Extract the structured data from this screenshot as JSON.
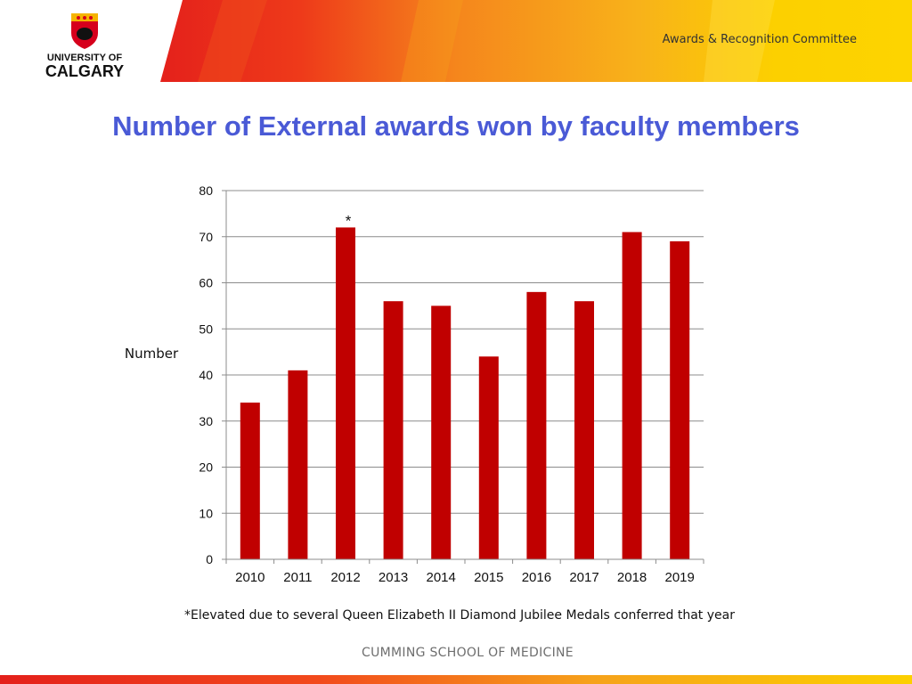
{
  "header": {
    "logo_text": [
      "UNIVERSITY OF",
      "CALGARY"
    ],
    "committee": "Awards & Recognition Committee"
  },
  "colors": {
    "title": "#4a5ad6",
    "bar": "#c00000",
    "header_red": "#e8231c",
    "header_orange": "#f28c1a",
    "header_yellow": "#fcd000"
  },
  "chart_data": {
    "type": "bar",
    "title": "Number of External awards won by faculty members",
    "xlabel": "",
    "ylabel": "Number",
    "categories": [
      "2010",
      "2011",
      "2012",
      "2013",
      "2014",
      "2015",
      "2016",
      "2017",
      "2018",
      "2019"
    ],
    "values": [
      34,
      41,
      72,
      56,
      55,
      44,
      58,
      56,
      71,
      69
    ],
    "ylim": [
      0,
      80
    ],
    "yticks": [
      0,
      10,
      20,
      30,
      40,
      50,
      60,
      70,
      80
    ],
    "grid": true,
    "annotations": [
      {
        "category": "2012",
        "text": "*"
      }
    ]
  },
  "footnote": "*Elevated due to several Queen Elizabeth II Diamond Jubilee Medals conferred that year",
  "footer": "CUMMING SCHOOL OF MEDICINE"
}
